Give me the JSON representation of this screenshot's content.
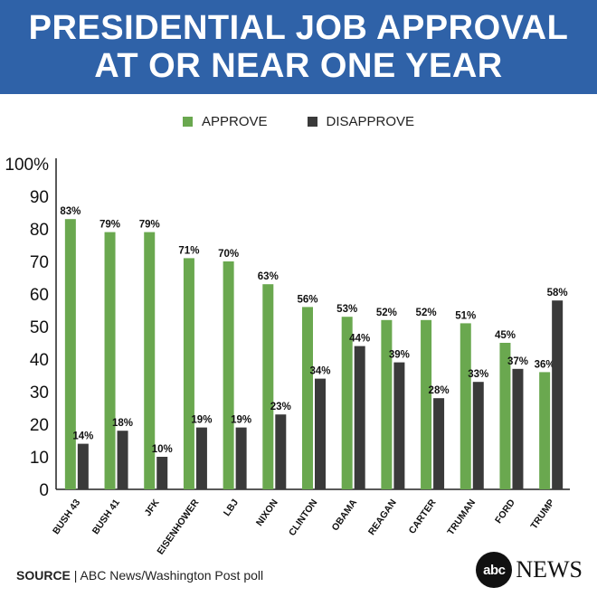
{
  "header": {
    "title_line1": "PRESIDENTIAL JOB APPROVAL",
    "title_line2": "AT OR NEAR ONE YEAR"
  },
  "colors": {
    "header_bg": "#2f62a8",
    "approve": "#6aa84f",
    "disapprove": "#3a3a3a"
  },
  "legend": {
    "approve": "APPROVE",
    "disapprove": "DISAPPROVE"
  },
  "footer": {
    "source_label": "SOURCE",
    "source_text": "| ABC News/Washington Post poll",
    "logo_circle": "abc",
    "logo_text": "NEWS"
  },
  "chart_data": {
    "type": "bar",
    "title": "PRESIDENTIAL JOB APPROVAL AT OR NEAR ONE YEAR",
    "categories": [
      "BUSH 43",
      "BUSH 41",
      "JFK",
      "EISENHOWER",
      "LBJ",
      "NIXON",
      "CLINTON",
      "OBAMA",
      "REAGAN",
      "CARTER",
      "TRUMAN",
      "FORD",
      "TRUMP"
    ],
    "series": [
      {
        "name": "APPROVE",
        "values": [
          83,
          79,
          79,
          71,
          70,
          63,
          56,
          53,
          52,
          52,
          51,
          45,
          36
        ]
      },
      {
        "name": "DISAPPROVE",
        "values": [
          14,
          18,
          10,
          19,
          19,
          23,
          34,
          44,
          39,
          28,
          33,
          37,
          58
        ]
      }
    ],
    "ylim": [
      0,
      100
    ],
    "yticks": [
      "0",
      "10",
      "20",
      "30",
      "40",
      "50",
      "60",
      "70",
      "80",
      "90",
      "100%"
    ],
    "value_suffix": "%",
    "xlabel": "",
    "ylabel": "",
    "grid": false,
    "legend_position": "top"
  }
}
